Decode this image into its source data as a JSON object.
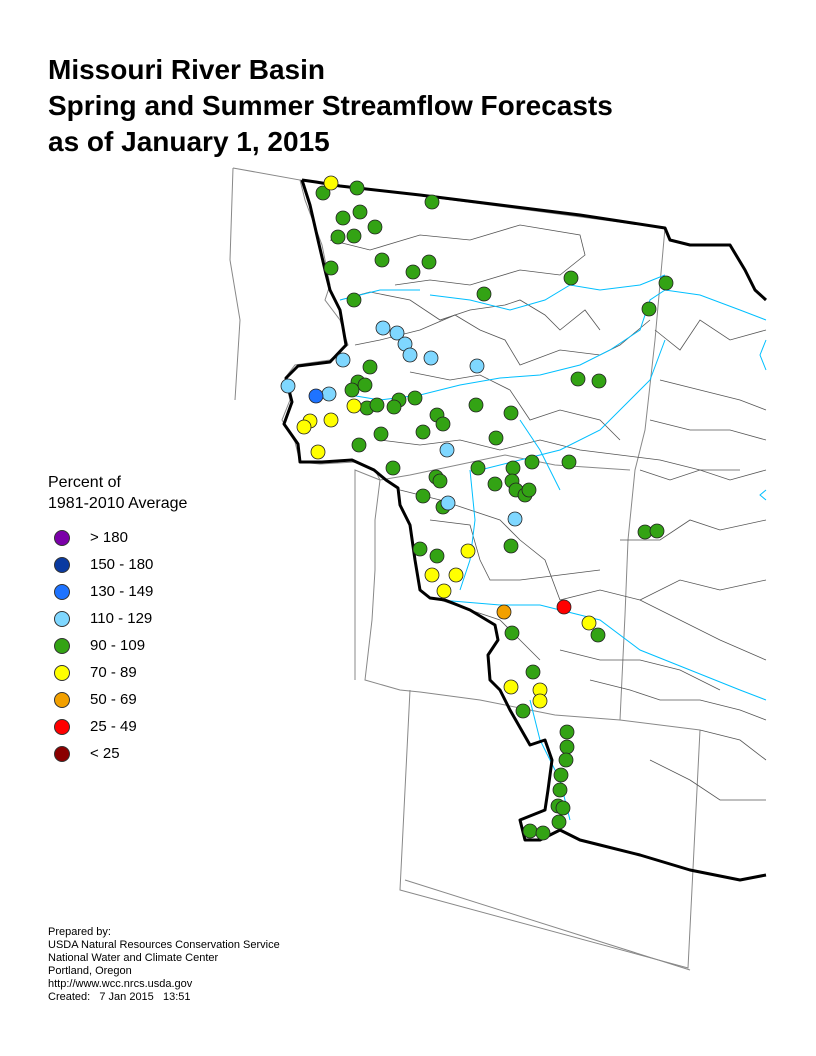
{
  "title_lines": [
    "Missouri River Basin",
    "Spring and Summer Streamflow Forecasts",
    "as of January 1, 2015"
  ],
  "legend": {
    "title_lines": [
      "Percent of",
      "1981-2010 Average"
    ],
    "items": [
      {
        "label": "> 180",
        "color": "#7b00a8"
      },
      {
        "label": "150 - 180",
        "color": "#0a3aa0"
      },
      {
        "label": "130 - 149",
        "color": "#1e73ff"
      },
      {
        "label": "110 - 129",
        "color": "#7fd7ff"
      },
      {
        "label": "90 - 109",
        "color": "#33a314"
      },
      {
        "label": "70 - 89",
        "color": "#ffff00"
      },
      {
        "label": "50 - 69",
        "color": "#f2a000"
      },
      {
        "label": "25 - 49",
        "color": "#ff0000"
      },
      {
        "label": "< 25",
        "color": "#8b0000"
      }
    ]
  },
  "credits": [
    "Prepared by:",
    "USDA Natural Resources Conservation Service",
    "National Water and Climate Center",
    "Portland, Oregon",
    "http://www.wcc.nrcs.usda.gov",
    "Created:   7 Jan 2015   13:51"
  ],
  "colors": {
    "state_border": "#888888",
    "basin_border": "#000000",
    "subbasin": "#555555",
    "river": "#00bfff"
  },
  "stations": {
    "green": [
      [
        323,
        193
      ],
      [
        357,
        188
      ],
      [
        432,
        202
      ],
      [
        343,
        218
      ],
      [
        360,
        212
      ],
      [
        375,
        227
      ],
      [
        338,
        237
      ],
      [
        354,
        236
      ],
      [
        382,
        260
      ],
      [
        331,
        268
      ],
      [
        413,
        272
      ],
      [
        429,
        262
      ],
      [
        354,
        300
      ],
      [
        484,
        294
      ],
      [
        571,
        278
      ],
      [
        666,
        283
      ],
      [
        649,
        309
      ],
      [
        370,
        367
      ],
      [
        358,
        382
      ],
      [
        352,
        390
      ],
      [
        365,
        385
      ],
      [
        367,
        408
      ],
      [
        377,
        405
      ],
      [
        399,
        400
      ],
      [
        415,
        398
      ],
      [
        394,
        407
      ],
      [
        476,
        405
      ],
      [
        437,
        415
      ],
      [
        443,
        424
      ],
      [
        423,
        432
      ],
      [
        381,
        434
      ],
      [
        511,
        413
      ],
      [
        496,
        438
      ],
      [
        359,
        445
      ],
      [
        578,
        379
      ],
      [
        599,
        381
      ],
      [
        478,
        468
      ],
      [
        513,
        468
      ],
      [
        532,
        462
      ],
      [
        569,
        462
      ],
      [
        393,
        468
      ],
      [
        436,
        477
      ],
      [
        440,
        481
      ],
      [
        443,
        507
      ],
      [
        423,
        496
      ],
      [
        495,
        484
      ],
      [
        512,
        481
      ],
      [
        516,
        490
      ],
      [
        525,
        495
      ],
      [
        529,
        490
      ],
      [
        420,
        549
      ],
      [
        437,
        556
      ],
      [
        511,
        546
      ],
      [
        645,
        532
      ],
      [
        657,
        531
      ],
      [
        512,
        633
      ],
      [
        598,
        635
      ],
      [
        533,
        672
      ],
      [
        523,
        711
      ],
      [
        567,
        732
      ],
      [
        567,
        747
      ],
      [
        566,
        760
      ],
      [
        561,
        775
      ],
      [
        560,
        790
      ],
      [
        558,
        806
      ],
      [
        563,
        808
      ],
      [
        559,
        822
      ],
      [
        530,
        831
      ],
      [
        543,
        833
      ]
    ],
    "yellow": [
      [
        331,
        183
      ],
      [
        354,
        406
      ],
      [
        310,
        421
      ],
      [
        304,
        427
      ],
      [
        331,
        420
      ],
      [
        318,
        452
      ],
      [
        468,
        551
      ],
      [
        432,
        575
      ],
      [
        456,
        575
      ],
      [
        444,
        591
      ],
      [
        589,
        623
      ],
      [
        511,
        687
      ],
      [
        540,
        690
      ],
      [
        540,
        701
      ]
    ],
    "lightblue": [
      [
        383,
        328
      ],
      [
        397,
        333
      ],
      [
        405,
        344
      ],
      [
        410,
        355
      ],
      [
        431,
        358
      ],
      [
        343,
        360
      ],
      [
        477,
        366
      ],
      [
        288,
        386
      ],
      [
        329,
        394
      ],
      [
        447,
        450
      ],
      [
        448,
        503
      ],
      [
        515,
        519
      ]
    ],
    "blue": [
      [
        316,
        396
      ]
    ],
    "orange": [
      [
        504,
        612
      ]
    ],
    "red": [
      [
        564,
        607
      ]
    ]
  }
}
